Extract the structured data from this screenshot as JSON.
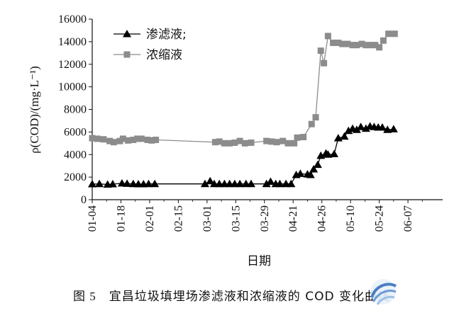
{
  "caption": {
    "figure_label": "图 5",
    "text": "宜昌垃圾填埋场渗滤液和浓缩液的 COD 变化曲线"
  },
  "chart_data": {
    "type": "line",
    "title": "",
    "xlabel": "日期",
    "ylabel": "ρ(COD)/(mg·L⁻¹)",
    "ylim": [
      0,
      16000
    ],
    "yticks": [
      0,
      2000,
      4000,
      6000,
      8000,
      10000,
      12000,
      14000,
      16000
    ],
    "xticks": [
      "01-04",
      "01-18",
      "02-01",
      "02-15",
      "03-01",
      "03-15",
      "03-29",
      "04-21",
      "04-26",
      "05-10",
      "05-24",
      "06-07"
    ],
    "grid": false,
    "legend_position": "top-left",
    "series": [
      {
        "name": "渗滤液;",
        "marker": "triangle",
        "color": "#000000",
        "points": [
          [
            0.0,
            1380
          ],
          [
            0.35,
            1400
          ],
          [
            0.75,
            1350
          ],
          [
            1.0,
            1380
          ],
          [
            1.45,
            1450
          ],
          [
            1.7,
            1420
          ],
          [
            2.0,
            1400
          ],
          [
            2.25,
            1380
          ],
          [
            2.5,
            1380
          ],
          [
            2.75,
            1400
          ],
          [
            3.05,
            1400
          ],
          [
            5.5,
            1400
          ],
          [
            5.75,
            1650
          ],
          [
            5.95,
            1400
          ],
          [
            6.2,
            1400
          ],
          [
            6.45,
            1400
          ],
          [
            6.7,
            1400
          ],
          [
            6.95,
            1400
          ],
          [
            7.2,
            1400
          ],
          [
            7.5,
            1400
          ],
          [
            7.75,
            1400
          ],
          [
            8.5,
            1400
          ],
          [
            8.7,
            1600
          ],
          [
            8.95,
            1400
          ],
          [
            9.15,
            1400
          ],
          [
            9.45,
            1400
          ],
          [
            9.7,
            1400
          ],
          [
            9.95,
            2200
          ],
          [
            10.15,
            2300
          ],
          [
            10.5,
            2250
          ],
          [
            10.65,
            2200
          ],
          [
            10.8,
            2700
          ],
          [
            11.0,
            3100
          ],
          [
            11.15,
            3900
          ],
          [
            11.4,
            4100
          ],
          [
            11.5,
            4000
          ],
          [
            11.8,
            4050
          ],
          [
            12.0,
            5450
          ],
          [
            12.3,
            5600
          ],
          [
            12.5,
            6100
          ],
          [
            12.7,
            6300
          ],
          [
            12.9,
            6200
          ],
          [
            13.1,
            6450
          ],
          [
            13.35,
            6300
          ],
          [
            13.55,
            6500
          ],
          [
            13.75,
            6450
          ],
          [
            13.95,
            6400
          ],
          [
            14.15,
            6400
          ],
          [
            14.4,
            6200
          ],
          [
            14.7,
            6250
          ]
        ]
      },
      {
        "name": "浓缩液",
        "marker": "square",
        "color": "#8c8c8c",
        "points": [
          [
            0.0,
            5450
          ],
          [
            0.25,
            5400
          ],
          [
            0.55,
            5350
          ],
          [
            0.85,
            5200
          ],
          [
            1.05,
            5100
          ],
          [
            1.35,
            5200
          ],
          [
            1.5,
            5400
          ],
          [
            1.75,
            5250
          ],
          [
            2.0,
            5300
          ],
          [
            2.2,
            5400
          ],
          [
            2.4,
            5400
          ],
          [
            2.7,
            5300
          ],
          [
            2.9,
            5250
          ],
          [
            3.1,
            5300
          ],
          [
            6.0,
            5100
          ],
          [
            6.2,
            5150
          ],
          [
            6.45,
            5000
          ],
          [
            6.7,
            5000
          ],
          [
            6.95,
            5050
          ],
          [
            7.2,
            5200
          ],
          [
            7.45,
            5000
          ],
          [
            7.75,
            5050
          ],
          [
            8.5,
            5200
          ],
          [
            8.75,
            5150
          ],
          [
            9.0,
            5100
          ],
          [
            9.3,
            5200
          ],
          [
            9.55,
            5000
          ],
          [
            9.85,
            5000
          ],
          [
            10.0,
            5500
          ],
          [
            10.3,
            5550
          ],
          [
            10.7,
            6700
          ],
          [
            10.9,
            7300
          ],
          [
            11.15,
            13200
          ],
          [
            11.3,
            12100
          ],
          [
            11.5,
            14500
          ],
          [
            11.75,
            13900
          ],
          [
            12.0,
            13900
          ],
          [
            12.2,
            13800
          ],
          [
            12.45,
            13800
          ],
          [
            12.7,
            13700
          ],
          [
            12.9,
            13700
          ],
          [
            13.15,
            13800
          ],
          [
            13.35,
            13700
          ],
          [
            13.55,
            13700
          ],
          [
            13.8,
            13700
          ],
          [
            14.0,
            13500
          ],
          [
            14.2,
            14100
          ],
          [
            14.45,
            14700
          ],
          [
            14.75,
            14700
          ]
        ]
      }
    ]
  }
}
